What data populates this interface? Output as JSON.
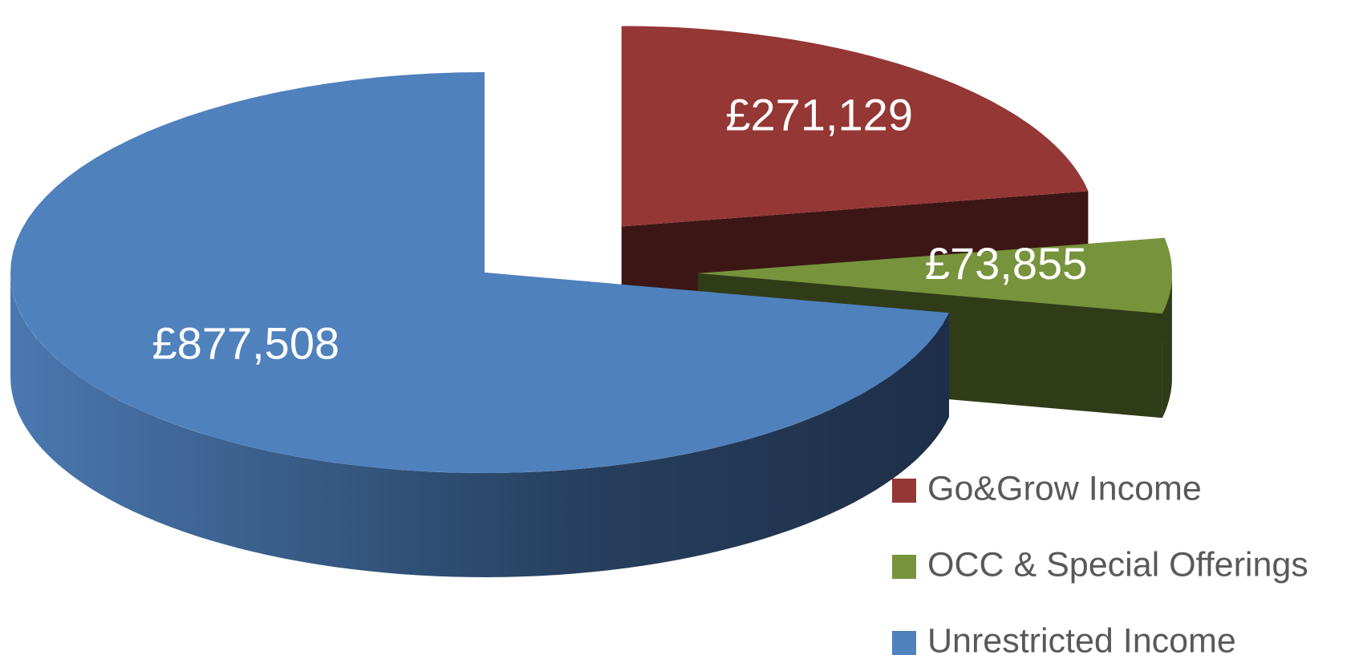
{
  "chart_data": {
    "type": "pie3d",
    "categories": [
      "Go&Grow Income",
      "OCC & Special Offerings",
      "Unrestricted Income"
    ],
    "values": [
      271129,
      73855,
      877508
    ],
    "value_labels": [
      "£271,129",
      "£73,855",
      "£877,508"
    ],
    "colors": [
      "#953735",
      "#77933c",
      "#4f81bd"
    ],
    "exploded": [
      true,
      true,
      false
    ],
    "legend": "bottom-right"
  }
}
